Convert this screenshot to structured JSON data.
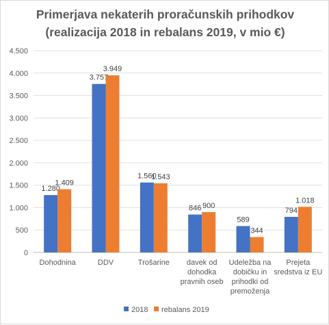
{
  "chart_data": {
    "type": "bar",
    "title_line1": "Primerjava nekaterih proračunskih prihodkov",
    "title_line2": "(realizacija 2018 in rebalans 2019, v mio €)",
    "categories": [
      [
        "Dohodnina"
      ],
      [
        "DDV"
      ],
      [
        "Trošarine"
      ],
      [
        "davek od",
        "dohodka",
        "pravnih oseb"
      ],
      [
        "Udeležba na",
        "dobičku in",
        "prihodki od",
        "premoženja"
      ],
      [
        "Prejeta",
        "sredstva iz EU"
      ]
    ],
    "series": [
      {
        "name": "2018",
        "color": "#4472C4",
        "values": [
          1280,
          3757,
          1560,
          846,
          589,
          794
        ],
        "labels": [
          "1.280",
          "3.757",
          "1.560",
          "846",
          "589",
          "794"
        ]
      },
      {
        "name": "rebalans 2019",
        "color": "#ED7D31",
        "values": [
          1409,
          3949,
          1543,
          900,
          344,
          1018
        ],
        "labels": [
          "1.409",
          "3.949",
          "1.543",
          "900",
          "344",
          "1.018"
        ]
      }
    ],
    "ylim": [
      0,
      4500
    ],
    "yticks": [
      0,
      500,
      1000,
      1500,
      2000,
      2500,
      3000,
      3500,
      4000,
      4500
    ],
    "ytick_labels": [
      "0",
      "500",
      "1.000",
      "1.500",
      "2.000",
      "2.500",
      "3.000",
      "3.500",
      "4.000",
      "4.500"
    ],
    "grid": true,
    "legend_position": "bottom"
  }
}
